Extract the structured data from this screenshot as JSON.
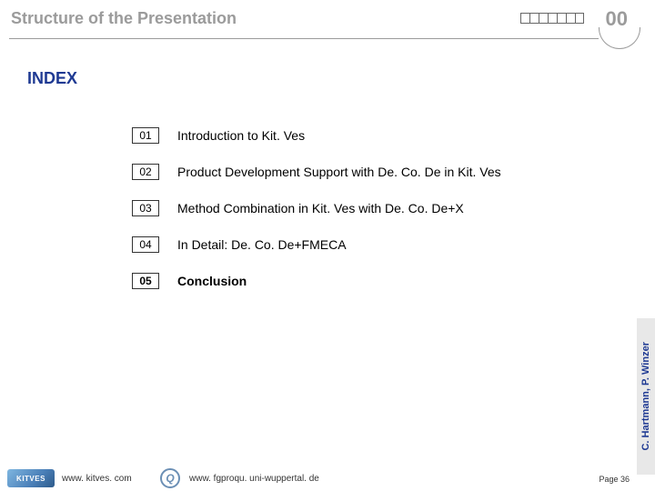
{
  "header": {
    "title": "Structure of the Presentation",
    "slide_number": "00",
    "title_color": "#9b9b9b",
    "title_fontsize": 18,
    "number_fontsize": 22,
    "ruler_ticks": 7,
    "line_color": "#9b9b9b"
  },
  "index": {
    "heading": "INDEX",
    "heading_color": "#1f3a93",
    "heading_fontsize": 18,
    "items": [
      {
        "num": "01",
        "label": "Introduction to Kit. Ves",
        "active": false
      },
      {
        "num": "02",
        "label": "Product Development Support with De. Co. De in Kit. Ves",
        "active": false
      },
      {
        "num": "03",
        "label": "Method Combination in Kit. Ves with De. Co. De+X",
        "active": false
      },
      {
        "num": "04",
        "label": "In Detail: De. Co. De+FMECA",
        "active": false
      },
      {
        "num": "05",
        "label": "Conclusion",
        "active": true
      }
    ],
    "item_fontsize": 14,
    "num_border_color": "#333333"
  },
  "authors": {
    "text": "C. Hartmann, P. Winzer",
    "color": "#1f3a93",
    "bg_color": "#e8e8e8",
    "fontsize": 11
  },
  "footer": {
    "logo_kitves_text": "KITVES",
    "url_left": "www. kitves. com",
    "logo_q_text": "Q",
    "url_center": "www. fgproqu. uni-wuppertal. de",
    "page": "Page 36",
    "fontsize": 10,
    "logo_kitves_bg": "#4a7fb8",
    "logo_q_color": "#6b8fb5"
  },
  "colors": {
    "background": "#ffffff",
    "text": "#000000",
    "accent": "#1f3a93",
    "muted": "#9b9b9b"
  }
}
